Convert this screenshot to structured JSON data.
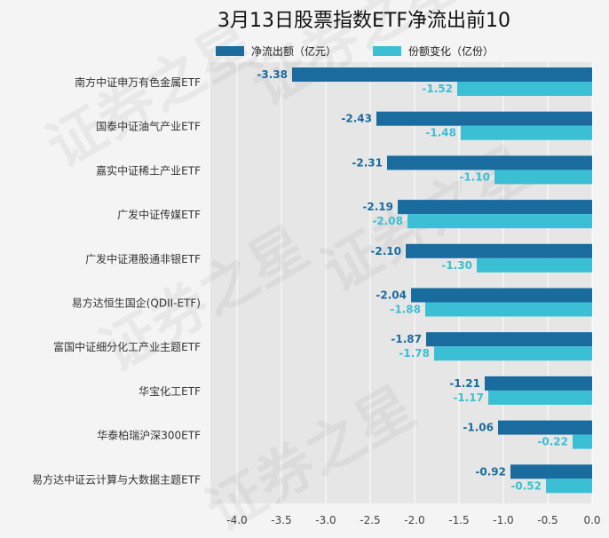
{
  "chart_data": {
    "type": "bar",
    "orientation": "horizontal",
    "title": "3月13日股票指数ETF净流出前10",
    "categories": [
      "南方中证申万有色金属ETF",
      "国泰中证油气产业ETF",
      "嘉实中证稀土产业ETF",
      "广发中证传媒ETF",
      "广发中证港股通非银ETF",
      "易方达恒生国企(QDII-ETF)",
      "富国中证细分化工产业主题ETF",
      "华宝化工ETF",
      "华泰柏瑞沪深300ETF",
      "易方达中证云计算与大数据主题ETF"
    ],
    "series": [
      {
        "name": "净流出额（亿元）",
        "color": "#1a6b9e",
        "values": [
          -3.38,
          -2.43,
          -2.31,
          -2.19,
          -2.1,
          -2.04,
          -1.87,
          -1.21,
          -1.06,
          -0.92
        ],
        "labels": [
          "-3.38",
          "-2.43",
          "-2.31",
          "-2.19",
          "-2.10",
          "-2.04",
          "-1.87",
          "-1.21",
          "-1.06",
          "-0.92"
        ]
      },
      {
        "name": "份额变化（亿份）",
        "color": "#3bbfd4",
        "values": [
          -1.52,
          -1.48,
          -1.1,
          -2.08,
          -1.3,
          -1.88,
          -1.78,
          -1.17,
          -0.22,
          -0.52
        ],
        "labels": [
          "-1.52",
          "-1.48",
          "-1.10",
          "-2.08",
          "-1.30",
          "-1.88",
          "-1.78",
          "-1.17",
          "-0.22",
          "-0.52"
        ]
      }
    ],
    "xlim": [
      -4.3,
      0
    ],
    "xticks": [
      -4.0,
      -3.5,
      -3.0,
      -2.5,
      -2.0,
      -1.5,
      -1.0,
      -0.5,
      0.0
    ],
    "xtick_labels": [
      "-4.0",
      "-3.5",
      "-3.0",
      "-2.5",
      "-2.0",
      "-1.5",
      "-1.0",
      "-0.5",
      "0.0"
    ],
    "grid": true,
    "legend_position": "top",
    "watermark": "证券之星"
  }
}
